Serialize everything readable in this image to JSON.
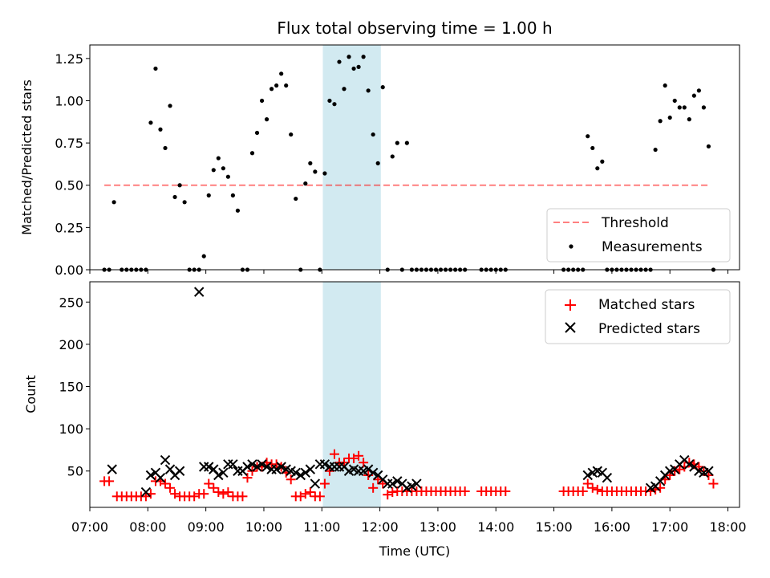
{
  "chart_data": {
    "title": "Flux total observing time = 1.00 h",
    "xlabel": "Time (UTC)",
    "xticks": [
      "07:00",
      "08:00",
      "09:00",
      "10:00",
      "11:00",
      "12:00",
      "13:00",
      "14:00",
      "15:00",
      "16:00",
      "17:00",
      "18:00"
    ],
    "xlim": [
      "07:00",
      "18:12"
    ],
    "highlight_span": [
      "11:01",
      "12:01"
    ],
    "highlight_color": "#add8e6",
    "panels": [
      {
        "type": "scatter",
        "ylabel": "Matched/Predicted stars",
        "ylim": [
          0,
          1.33
        ],
        "yticks": [
          "0.00",
          "0.25",
          "0.50",
          "0.75",
          "1.00",
          "1.25"
        ],
        "legend_position": "lower-right",
        "threshold": {
          "name": "Threshold",
          "value": 0.5,
          "x_range": [
            "07:15",
            "17:40"
          ],
          "color": "#ff0000"
        },
        "series": [
          {
            "name": "Measurements",
            "color": "#000000",
            "x": [
              "07:15",
              "07:20",
              "07:25",
              "07:33",
              "07:38",
              "07:43",
              "07:48",
              "07:53",
              "07:58",
              "08:03",
              "08:08",
              "08:13",
              "08:18",
              "08:23",
              "08:28",
              "08:33",
              "08:38",
              "08:43",
              "08:48",
              "08:53",
              "08:58",
              "09:03",
              "09:08",
              "09:13",
              "09:18",
              "09:23",
              "09:28",
              "09:33",
              "09:38",
              "09:43",
              "09:48",
              "09:53",
              "09:58",
              "10:03",
              "10:08",
              "10:13",
              "10:18",
              "10:23",
              "10:28",
              "10:33",
              "10:38",
              "10:43",
              "10:48",
              "10:53",
              "10:58",
              "11:03",
              "11:08",
              "11:13",
              "11:18",
              "11:23",
              "11:28",
              "11:33",
              "11:38",
              "11:43",
              "11:48",
              "11:53",
              "11:58",
              "12:03",
              "12:08",
              "12:13",
              "12:18",
              "12:23",
              "12:28",
              "12:33",
              "12:38",
              "12:43",
              "12:48",
              "12:53",
              "12:58",
              "13:03",
              "13:08",
              "13:13",
              "13:18",
              "13:23",
              "13:28",
              "13:45",
              "13:50",
              "13:55",
              "14:00",
              "14:05",
              "14:10",
              "15:10",
              "15:15",
              "15:20",
              "15:25",
              "15:30",
              "15:35",
              "15:40",
              "15:45",
              "15:50",
              "15:55",
              "16:00",
              "16:05",
              "16:10",
              "16:15",
              "16:20",
              "16:25",
              "16:30",
              "16:35",
              "16:40",
              "16:45",
              "16:50",
              "16:55",
              "17:00",
              "17:05",
              "17:10",
              "17:15",
              "17:20",
              "17:25",
              "17:30",
              "17:35",
              "17:40",
              "17:45"
            ],
            "values": [
              0,
              0,
              0.4,
              0,
              0,
              0,
              0,
              0,
              0,
              0.87,
              1.19,
              0.83,
              0.72,
              0.97,
              0.43,
              0.5,
              0.4,
              0,
              0,
              0,
              0.08,
              0.44,
              0.59,
              0.66,
              0.6,
              0.55,
              0.44,
              0.35,
              0,
              0,
              0.69,
              0.81,
              1.0,
              0.89,
              1.07,
              1.09,
              1.16,
              1.09,
              0.8,
              0.42,
              0,
              0.51,
              0.63,
              0.58,
              0,
              0.57,
              1.0,
              0.98,
              1.23,
              1.07,
              1.26,
              1.19,
              1.2,
              1.26,
              1.06,
              0.8,
              0.63,
              1.08,
              0,
              0.67,
              0.75,
              0,
              0.75,
              0,
              0,
              0,
              0,
              0,
              0,
              0,
              0,
              0,
              0,
              0,
              0,
              0,
              0,
              0,
              0,
              0,
              0,
              0,
              0,
              0,
              0,
              0,
              0.79,
              0.72,
              0.6,
              0.64,
              0,
              0,
              0,
              0,
              0,
              0,
              0,
              0,
              0,
              0,
              0.71,
              0.88,
              1.09,
              0.9,
              1.0,
              0.96,
              0.96,
              0.89,
              1.03,
              1.06,
              0.96,
              0.73,
              0
            ]
          }
        ]
      },
      {
        "type": "scatter",
        "ylabel": "Count",
        "ylim": [
          7,
          274
        ],
        "yticks": [
          "50",
          "100",
          "150",
          "200",
          "250"
        ],
        "legend_position": "upper-right",
        "series": [
          {
            "name": "Matched stars",
            "color": "#ff0000",
            "marker": "plus",
            "x": [
              "07:15",
              "07:20",
              "07:28",
              "07:33",
              "07:38",
              "07:43",
              "07:48",
              "07:53",
              "07:58",
              "08:03",
              "08:08",
              "08:13",
              "08:18",
              "08:23",
              "08:28",
              "08:33",
              "08:38",
              "08:43",
              "08:48",
              "08:53",
              "08:58",
              "09:03",
              "09:08",
              "09:13",
              "09:18",
              "09:23",
              "09:28",
              "09:33",
              "09:38",
              "09:43",
              "09:48",
              "09:53",
              "09:58",
              "10:03",
              "10:08",
              "10:13",
              "10:18",
              "10:23",
              "10:28",
              "10:33",
              "10:38",
              "10:43",
              "10:48",
              "10:53",
              "10:58",
              "11:03",
              "11:08",
              "11:13",
              "11:18",
              "11:23",
              "11:28",
              "11:33",
              "11:38",
              "11:43",
              "11:48",
              "11:53",
              "11:58",
              "12:03",
              "12:08",
              "12:13",
              "12:18",
              "12:23",
              "12:28",
              "12:33",
              "12:38",
              "12:43",
              "12:48",
              "12:53",
              "12:58",
              "13:03",
              "13:08",
              "13:13",
              "13:18",
              "13:23",
              "13:28",
              "13:45",
              "13:50",
              "13:55",
              "14:00",
              "14:05",
              "14:10",
              "15:10",
              "15:15",
              "15:20",
              "15:25",
              "15:30",
              "15:35",
              "15:40",
              "15:45",
              "15:50",
              "15:55",
              "16:00",
              "16:05",
              "16:10",
              "16:15",
              "16:20",
              "16:25",
              "16:30",
              "16:35",
              "16:40",
              "16:45",
              "16:50",
              "16:55",
              "17:00",
              "17:05",
              "17:10",
              "17:15",
              "17:20",
              "17:25",
              "17:30",
              "17:35",
              "17:40",
              "17:45"
            ],
            "values": [
              38,
              38,
              20,
              20,
              20,
              20,
              20,
              20,
              20,
              23,
              38,
              38,
              35,
              30,
              23,
              20,
              20,
              20,
              20,
              23,
              23,
              35,
              30,
              25,
              23,
              25,
              20,
              20,
              20,
              42,
              50,
              55,
              55,
              60,
              58,
              58,
              55,
              48,
              40,
              20,
              20,
              23,
              25,
              20,
              20,
              35,
              50,
              70,
              60,
              60,
              65,
              65,
              68,
              60,
              45,
              30,
              40,
              35,
              22,
              25,
              26,
              26,
              26,
              26,
              26,
              26,
              26,
              26,
              26,
              26,
              26,
              26,
              26,
              26,
              26,
              26,
              26,
              26,
              26,
              26,
              26,
              26,
              26,
              26,
              26,
              26,
              35,
              30,
              28,
              26,
              26,
              26,
              26,
              26,
              26,
              26,
              26,
              26,
              26,
              26,
              28,
              30,
              40,
              45,
              50,
              52,
              55,
              60,
              58,
              55,
              50,
              45,
              35
            ]
          },
          {
            "name": "Predicted stars",
            "color": "#000000",
            "marker": "x",
            "x": [
              "07:23",
              "07:58",
              "08:03",
              "08:08",
              "08:13",
              "08:18",
              "08:23",
              "08:28",
              "08:33",
              "08:53",
              "08:58",
              "09:03",
              "09:08",
              "09:13",
              "09:18",
              "09:23",
              "09:28",
              "09:33",
              "09:38",
              "09:43",
              "09:48",
              "09:53",
              "09:58",
              "10:03",
              "10:08",
              "10:13",
              "10:18",
              "10:23",
              "10:28",
              "10:33",
              "10:38",
              "10:43",
              "10:48",
              "10:53",
              "10:58",
              "11:03",
              "11:08",
              "11:13",
              "11:18",
              "11:23",
              "11:28",
              "11:33",
              "11:38",
              "11:43",
              "11:48",
              "11:53",
              "11:58",
              "12:03",
              "12:08",
              "12:13",
              "12:18",
              "12:23",
              "12:28",
              "12:33",
              "12:38",
              "15:35",
              "15:40",
              "15:45",
              "15:50",
              "15:55",
              "16:40",
              "16:45",
              "16:50",
              "16:55",
              "17:00",
              "17:05",
              "17:10",
              "17:15",
              "17:20",
              "17:25",
              "17:30",
              "17:35",
              "17:40"
            ],
            "values": [
              52,
              25,
              45,
              48,
              42,
              63,
              52,
              45,
              50,
              262,
              55,
              55,
              52,
              45,
              48,
              58,
              58,
              50,
              50,
              55,
              58,
              55,
              58,
              55,
              52,
              52,
              55,
              52,
              50,
              48,
              45,
              48,
              52,
              35,
              58,
              58,
              55,
              55,
              55,
              55,
              50,
              52,
              50,
              50,
              52,
              48,
              45,
              40,
              35,
              35,
              38,
              35,
              30,
              32,
              35,
              45,
              48,
              50,
              48,
              42,
              30,
              32,
              38,
              45,
              50,
              52,
              58,
              63,
              58,
              55,
              50,
              48,
              50
            ]
          }
        ]
      }
    ]
  }
}
